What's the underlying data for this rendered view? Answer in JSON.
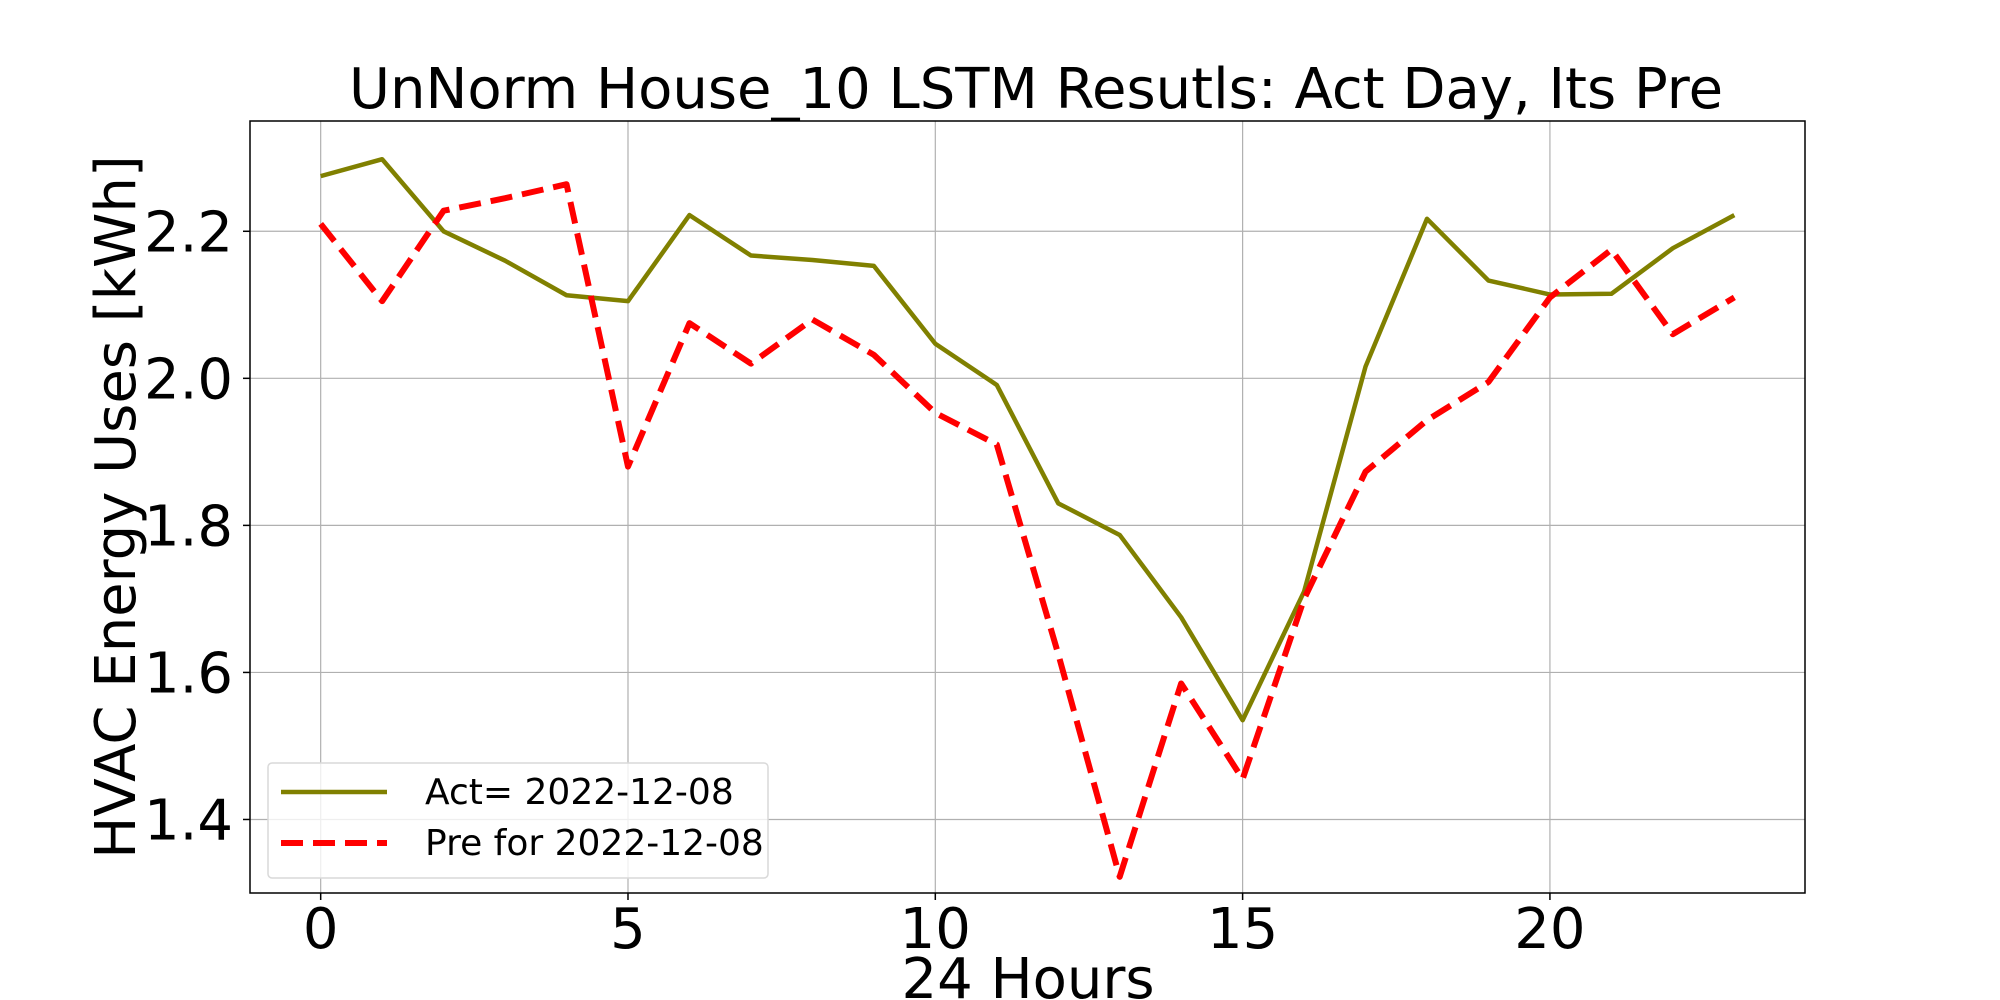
{
  "chart_data": {
    "type": "line",
    "title": "UnNorm House_10 LSTM Resutls: Act Day, Its Pre",
    "xlabel": "24 Hours",
    "ylabel": "HVAC Energy Uses [kWh]",
    "xlim": [
      -1.15,
      24.15
    ],
    "ylim": [
      1.3,
      2.35
    ],
    "xticks": [
      0,
      5,
      10,
      15,
      20
    ],
    "yticks": [
      1.4,
      1.6,
      1.8,
      2.0,
      2.2
    ],
    "xtick_labels": [
      "0",
      "5",
      "10",
      "15",
      "20"
    ],
    "ytick_labels": [
      "1.4",
      "1.6",
      "1.8",
      "2.0",
      "2.2"
    ],
    "grid": true,
    "legend_position": "lower-left",
    "x": [
      0,
      1,
      2,
      3,
      4,
      5,
      6,
      7,
      8,
      9,
      10,
      11,
      12,
      13,
      14,
      15,
      16,
      17,
      18,
      19,
      20,
      21,
      22,
      23
    ],
    "series": [
      {
        "name": "Act= 2022-12-08",
        "color": "#808000",
        "style": "solid",
        "values": [
          2.275,
          2.298,
          2.2,
          2.16,
          2.113,
          2.105,
          2.222,
          2.167,
          2.161,
          2.153,
          2.047,
          1.991,
          1.83,
          1.787,
          1.675,
          1.535,
          1.71,
          2.016,
          2.217,
          2.133,
          2.114,
          2.115,
          2.177,
          2.222
        ]
      },
      {
        "name": "Pre for 2022-12-08",
        "color": "#ff0000",
        "style": "dashed",
        "values": [
          2.21,
          2.105,
          2.228,
          2.245,
          2.264,
          1.88,
          2.075,
          2.02,
          2.08,
          2.032,
          1.953,
          1.91,
          1.625,
          1.322,
          1.585,
          1.455,
          1.7,
          1.873,
          1.943,
          1.995,
          2.11,
          2.175,
          2.06,
          2.11
        ]
      }
    ]
  }
}
